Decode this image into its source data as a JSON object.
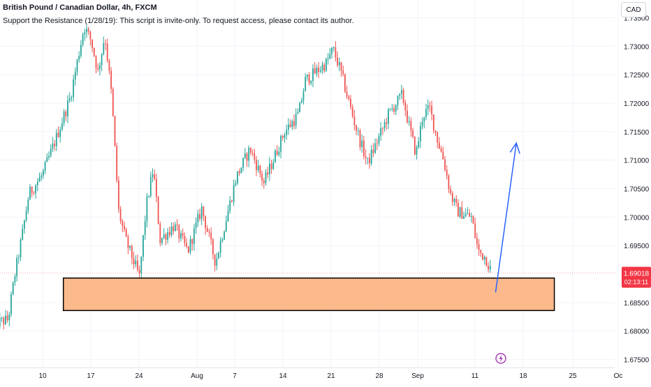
{
  "header": {
    "title": "British Pound / Canadian Dollar, 4h, FXCM",
    "subtitle": "Support the Resistance (1/28/19): This script is invite-only. To request access, please contact its author.",
    "currency_button": "CAD"
  },
  "colors": {
    "up": "#26a69a",
    "down": "#ef5350",
    "zone_fill": "#fcb98b",
    "zone_border": "#000000",
    "arrow": "#2962ff",
    "price_label_bg": "#f23645",
    "grid": "#f0f3fa",
    "axis_text": "#131722",
    "event_marker": "#9c27b0"
  },
  "chart_data": {
    "type": "candlestick",
    "symbol": "British Pound / Canadian Dollar",
    "interval": "4h",
    "source": "FXCM",
    "ylim": [
      1.6725,
      1.7375
    ],
    "y_ticks": [
      "1.73500",
      "1.73000",
      "1.72500",
      "1.72000",
      "1.71500",
      "1.71000",
      "1.70500",
      "1.70000",
      "1.69500",
      "1.68500",
      "1.68000",
      "1.67500"
    ],
    "x_ticks": [
      "10",
      "17",
      "24",
      "Aug",
      "7",
      "14",
      "21",
      "28",
      "Sep",
      "11",
      "18",
      "25",
      "Oc"
    ],
    "last_price": "1.69018",
    "countdown": "02:13:11",
    "support_zone": {
      "low": 1.6836,
      "high": 1.6893,
      "from": "Jul 13",
      "to": "Sep 22"
    },
    "projection_arrow": {
      "from": {
        "date": "Sep 13",
        "price": 1.6868
      },
      "to": {
        "date": "Sep 16",
        "price": 1.713
      }
    },
    "price_path": [
      [
        "Jul 3",
        1.6813
      ],
      [
        "Jul 5",
        1.682
      ],
      [
        "Jul 6",
        1.69
      ],
      [
        "Jul 7",
        1.6965
      ],
      [
        "Jul 8",
        1.704
      ],
      [
        "Jul 10",
        1.7075
      ],
      [
        "Jul 12",
        1.714
      ],
      [
        "Jul 14",
        1.721
      ],
      [
        "Jul 16",
        1.7335
      ],
      [
        "Jul 17",
        1.731
      ],
      [
        "Jul 18",
        1.7255
      ],
      [
        "Jul 19",
        1.732
      ],
      [
        "Jul 20",
        1.721
      ],
      [
        "Jul 21",
        1.701
      ],
      [
        "Jul 22",
        1.696
      ],
      [
        "Jul 24",
        1.6895
      ],
      [
        "Jul 25",
        1.702
      ],
      [
        "Jul 26",
        1.7085
      ],
      [
        "Jul 27",
        1.696
      ],
      [
        "Jul 29",
        1.6985
      ],
      [
        "Jul 31",
        1.694
      ],
      [
        "Aug 2",
        1.7015
      ],
      [
        "Aug 4",
        1.692
      ],
      [
        "Aug 5",
        1.697
      ],
      [
        "Aug 7",
        1.707
      ],
      [
        "Aug 9",
        1.712
      ],
      [
        "Aug 11",
        1.706
      ],
      [
        "Aug 12",
        1.709
      ],
      [
        "Aug 14",
        1.715
      ],
      [
        "Aug 16",
        1.718
      ],
      [
        "Aug 17",
        1.724
      ],
      [
        "Aug 18",
        1.725
      ],
      [
        "Aug 20",
        1.727
      ],
      [
        "Aug 21",
        1.7295
      ],
      [
        "Aug 22",
        1.726
      ],
      [
        "Aug 24",
        1.717
      ],
      [
        "Aug 25",
        1.713
      ],
      [
        "Aug 26",
        1.7095
      ],
      [
        "Aug 28",
        1.715
      ],
      [
        "Aug 29",
        1.718
      ],
      [
        "Aug 31",
        1.7215
      ],
      [
        "Sep 1",
        1.716
      ],
      [
        "Sep 2",
        1.711
      ],
      [
        "Sep 3",
        1.718
      ],
      [
        "Sep 4",
        1.719
      ],
      [
        "Sep 5",
        1.714
      ],
      [
        "Sep 6",
        1.71
      ],
      [
        "Sep 7",
        1.704
      ],
      [
        "Sep 8",
        1.701
      ],
      [
        "Sep 10",
        1.7
      ],
      [
        "Sep 11",
        1.694
      ],
      [
        "Sep 12",
        1.693
      ],
      [
        "Sep 13",
        1.6902
      ]
    ]
  }
}
